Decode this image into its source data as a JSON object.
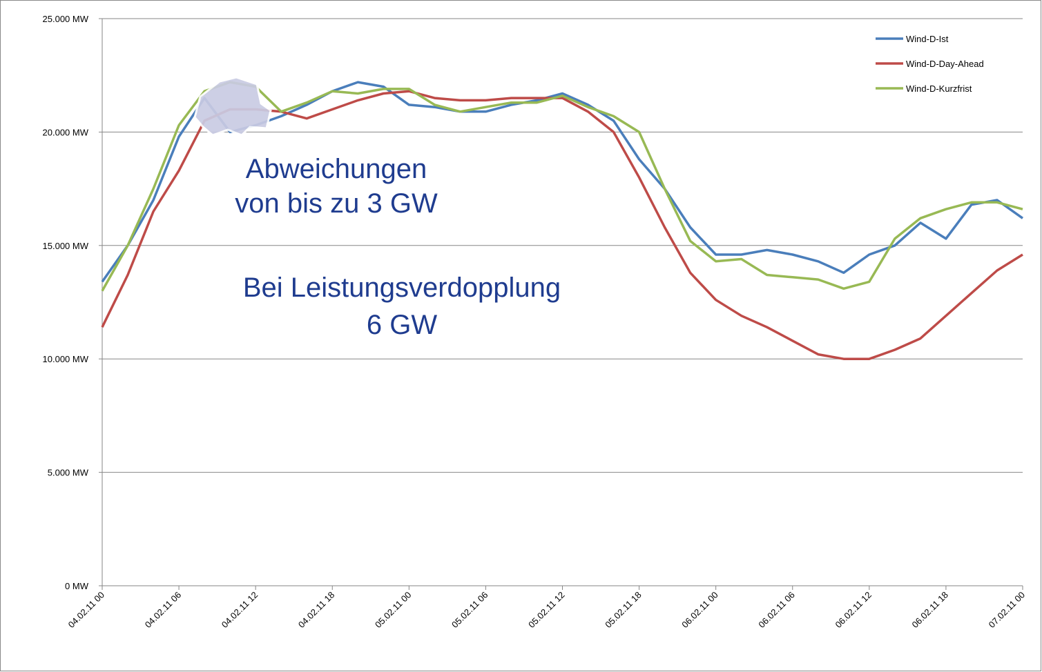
{
  "chart_data": {
    "type": "line",
    "categories": [
      "04.02.11 00",
      null,
      null,
      "04.02.11 06",
      null,
      null,
      "04.02.11 12",
      null,
      null,
      "04.02.11 18",
      null,
      null,
      "05.02.11 00",
      null,
      null,
      "05.02.11 06",
      null,
      null,
      "05.02.11 12",
      null,
      null,
      "05.02.11 18",
      null,
      null,
      "06.02.11 00",
      null,
      null,
      "06.02.11 06",
      null,
      null,
      "06.02.11 12",
      null,
      null,
      "06.02.11 18",
      null,
      null,
      "07.02.11 00"
    ],
    "series": [
      {
        "name": "Wind-D-Ist",
        "color": "#4a7ebb",
        "values": [
          13400,
          15000,
          17000,
          19800,
          21500,
          20000,
          20300,
          20700,
          21200,
          21800,
          22200,
          22000,
          21200,
          21100,
          20900,
          20900,
          21200,
          21400,
          21700,
          21200,
          20500,
          18800,
          17500,
          15800,
          14600,
          14600,
          14800,
          14600,
          14300,
          13800,
          14600,
          15000,
          16000,
          15300,
          16800,
          17000,
          16200
        ]
      },
      {
        "name": "Wind-D-Day-Ahead",
        "color": "#be4b48",
        "values": [
          11400,
          13700,
          16500,
          18300,
          20500,
          21000,
          21000,
          20900,
          20600,
          21000,
          21400,
          21700,
          21800,
          21500,
          21400,
          21400,
          21500,
          21500,
          21500,
          20900,
          20000,
          18000,
          15800,
          13800,
          12600,
          11900,
          11400,
          10800,
          10200,
          10000,
          10000,
          10400,
          10900,
          11900,
          12900,
          13900,
          14600
        ]
      },
      {
        "name": "Wind-D-Kurzfrist",
        "color": "#98b954",
        "values": [
          13000,
          15000,
          17500,
          20300,
          21800,
          22200,
          22000,
          20900,
          21300,
          21800,
          21700,
          21900,
          21900,
          21200,
          20900,
          21100,
          21300,
          21300,
          21600,
          21100,
          20700,
          20000,
          17500,
          15200,
          14300,
          14400,
          13700,
          13600,
          13500,
          13100,
          13400,
          15300,
          16200,
          16600,
          16900,
          16900,
          16600
        ]
      }
    ],
    "ylim": [
      0,
      25000
    ],
    "yticks": [
      {
        "value": 0,
        "label": "0 MW"
      },
      {
        "value": 5000,
        "label": "5.000 MW"
      },
      {
        "value": 10000,
        "label": "10.000 MW"
      },
      {
        "value": 15000,
        "label": "15.000 MW"
      },
      {
        "value": 20000,
        "label": "20.000 MW"
      },
      {
        "value": 25000,
        "label": "25.000 MW"
      }
    ],
    "grid": true,
    "legend": "top-right",
    "annotations": [
      "Abweichungen",
      "von bis zu 3 GW",
      "Bei Leistungsverdopplung",
      "6 GW"
    ]
  }
}
